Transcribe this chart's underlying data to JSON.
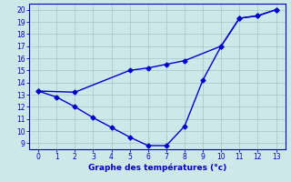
{
  "line1_x": [
    0,
    1,
    2,
    3,
    4,
    5,
    6,
    7,
    8,
    9,
    10,
    11,
    12,
    13
  ],
  "line1_y": [
    13.3,
    12.8,
    12.0,
    11.1,
    10.3,
    9.5,
    8.8,
    8.8,
    10.4,
    14.2,
    17.0,
    19.3,
    19.5,
    20.0
  ],
  "line2_x": [
    0,
    2,
    5,
    6,
    7,
    8,
    10,
    11,
    12,
    13
  ],
  "line2_y": [
    13.3,
    13.2,
    15.0,
    15.2,
    15.5,
    15.8,
    17.0,
    19.3,
    19.5,
    20.0
  ],
  "line_color": "#0000cc",
  "marker": "D",
  "markersize": 2.5,
  "linewidth": 1.0,
  "xlabel": "Graphe des températures (°c)",
  "xlim": [
    -0.5,
    13.5
  ],
  "ylim": [
    8.5,
    20.5
  ],
  "yticks": [
    9,
    10,
    11,
    12,
    13,
    14,
    15,
    16,
    17,
    18,
    19,
    20
  ],
  "xticks": [
    0,
    1,
    2,
    3,
    4,
    5,
    6,
    7,
    8,
    9,
    10,
    11,
    12,
    13
  ],
  "bg_color": "#cce8e8",
  "grid_color": "#aacccc",
  "axis_color": "#0000cc",
  "tick_color": "#0000cc",
  "label_color": "#0000cc",
  "tick_fontsize": 5.5,
  "xlabel_fontsize": 6.5
}
